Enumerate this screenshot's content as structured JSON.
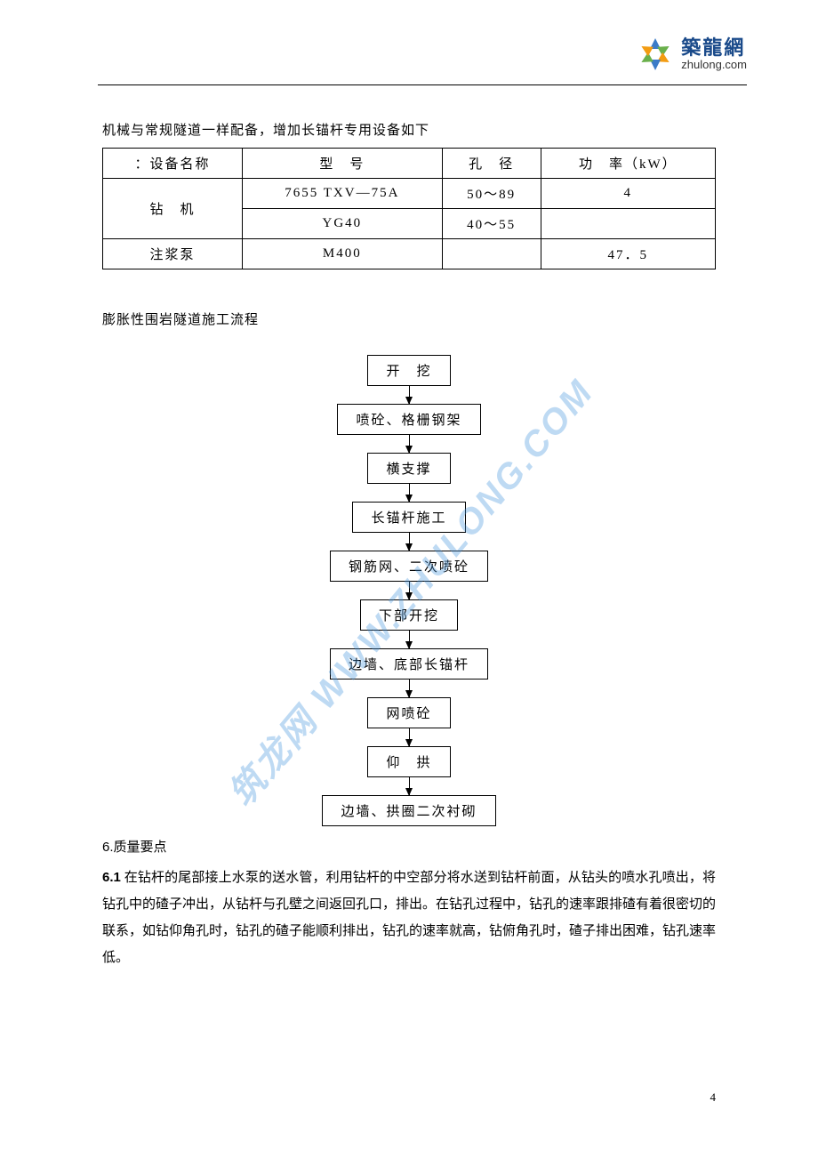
{
  "header": {
    "logo_cn": "築龍網",
    "logo_en": "zhulong.com",
    "logo_colors": {
      "blue": "#3b7bc8",
      "green": "#6ab04c",
      "orange": "#f39c12",
      "darkblue": "#1a4a8a"
    }
  },
  "page": {
    "number": "4"
  },
  "intro": "机械与常规隧道一样配备，增加长锚杆专用设备如下",
  "table": {
    "columns": [
      "：设备名称",
      "型　号",
      "孔　径",
      "功　率（kW）"
    ],
    "rows": [
      {
        "name": "钻　机",
        "rowspan": 2,
        "model": "7655 TXV—75A",
        "diameter": "50～89",
        "power": "4"
      },
      {
        "name": null,
        "model": "YG40",
        "diameter": "40～55",
        "power": ""
      },
      {
        "name": "注浆泵",
        "rowspan": 1,
        "model": "M400",
        "diameter": "",
        "power": "47．5"
      }
    ]
  },
  "flow_title": "膨胀性围岩隧道施工流程",
  "flowchart": {
    "nodes": [
      "开　挖",
      "喷砼、格栅钢架",
      "横支撑",
      "长锚杆施工",
      "钢筋网、二次喷砼",
      "下部开挖",
      "边墙、底部长锚杆",
      "网喷砼",
      "仰　拱",
      "边墙、拱圈二次衬砌"
    ],
    "box_border": "#000000",
    "arrow_color": "#000000"
  },
  "watermark": {
    "text": "筑龙网 WWW.ZHULONG.COM",
    "color": "rgba(70,150,220,0.35)"
  },
  "quality": {
    "heading_num": "6.",
    "heading_text": "质量要点",
    "item_num": "6.1",
    "item_text": " 在钻杆的尾部接上水泵的送水管，利用钻杆的中空部分将水送到钻杆前面，从钻头的喷水孔喷出，将钻孔中的碴子冲出，从钻杆与孔壁之间返回孔口，排出。在钻孔过程中，钻孔的速率跟排碴有着很密切的联系，如钻仰角孔时，钻孔的碴子能顺利排出，钻孔的速率就高，钻俯角孔时，碴子排出困难，钻孔速率低。"
  }
}
